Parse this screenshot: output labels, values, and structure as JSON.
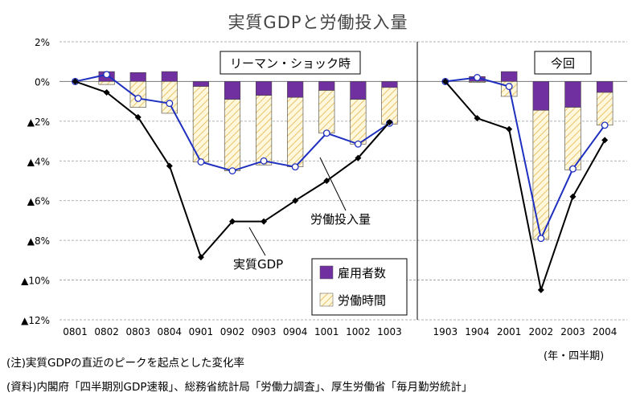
{
  "title": "実質GDPと労働投入量",
  "notes": {
    "note1": "(注)実質GDPの直近のピークを起点とした変化率",
    "note2": "(資料)内閣府「四半期別GDP速報」、総務省統計局「労働力調査」、厚生労働省「毎月勤労統計」",
    "unit": "(年・四半期)"
  },
  "colors": {
    "employment_bar": "#7030A0",
    "hours_bar_fill": "#FFF8DC",
    "hours_bar_hatch": "#E8C36A",
    "labor_line": "#1F2FBF",
    "gdp_line": "#000000",
    "grid": "#999999"
  },
  "chart_data": {
    "type": "bar",
    "ylim": [
      -12,
      2
    ],
    "yticks": [
      2,
      0,
      -2,
      -4,
      -6,
      -8,
      -10,
      -12
    ],
    "ytick_labels": [
      "2%",
      "0%",
      "▲2%",
      "▲4%",
      "▲6%",
      "▲8%",
      "▲10%",
      "▲12%"
    ],
    "grid": true,
    "legend_position": "bottom-right",
    "panels": [
      {
        "label": "リーマン・ショック時",
        "categories": [
          "0801",
          "0802",
          "0803",
          "0804",
          "0901",
          "0902",
          "0903",
          "0904",
          "1001",
          "1002",
          "1003"
        ],
        "series": [
          {
            "name": "雇用者数",
            "type": "stacked-bar",
            "values": [
              0,
              0.5,
              0.45,
              0.5,
              -0.25,
              -0.9,
              -0.7,
              -0.8,
              -0.45,
              -0.9,
              -0.3
            ]
          },
          {
            "name": "労働時間",
            "type": "stacked-bar",
            "values": [
              0,
              -0.15,
              -1.3,
              -1.6,
              -3.8,
              -3.6,
              -3.5,
              -3.5,
              -2.15,
              -2.25,
              -1.85
            ]
          },
          {
            "name": "労働投入量",
            "type": "line",
            "values": [
              0,
              0.35,
              -0.85,
              -1.1,
              -4.05,
              -4.5,
              -4.0,
              -4.3,
              -2.6,
              -3.15,
              -2.1
            ]
          },
          {
            "name": "実質GDP",
            "type": "line",
            "values": [
              0,
              -0.55,
              -1.8,
              -4.25,
              -8.85,
              -7.05,
              -7.05,
              -6.0,
              -5.0,
              -3.85,
              -2.05
            ]
          }
        ]
      },
      {
        "label": "今回",
        "categories": [
          "1903",
          "1904",
          "2001",
          "2002",
          "2003",
          "2004"
        ],
        "series": [
          {
            "name": "雇用者数",
            "type": "stacked-bar",
            "values": [
              0,
              0.25,
              0.5,
              -1.45,
              -1.3,
              -0.55
            ]
          },
          {
            "name": "労働時間",
            "type": "stacked-bar",
            "values": [
              0,
              -0.05,
              -0.75,
              -6.5,
              -3.15,
              -1.65
            ]
          },
          {
            "name": "労働投入量",
            "type": "line",
            "values": [
              0,
              0.2,
              -0.25,
              -7.9,
              -4.4,
              -2.2
            ]
          },
          {
            "name": "実質GDP",
            "type": "line",
            "values": [
              0,
              -1.85,
              -2.4,
              -10.5,
              -5.8,
              -2.95
            ]
          }
        ]
      }
    ],
    "legend": [
      "雇用者数",
      "労働時間"
    ],
    "annotations": [
      "労働投入量",
      "実質GDP"
    ]
  }
}
